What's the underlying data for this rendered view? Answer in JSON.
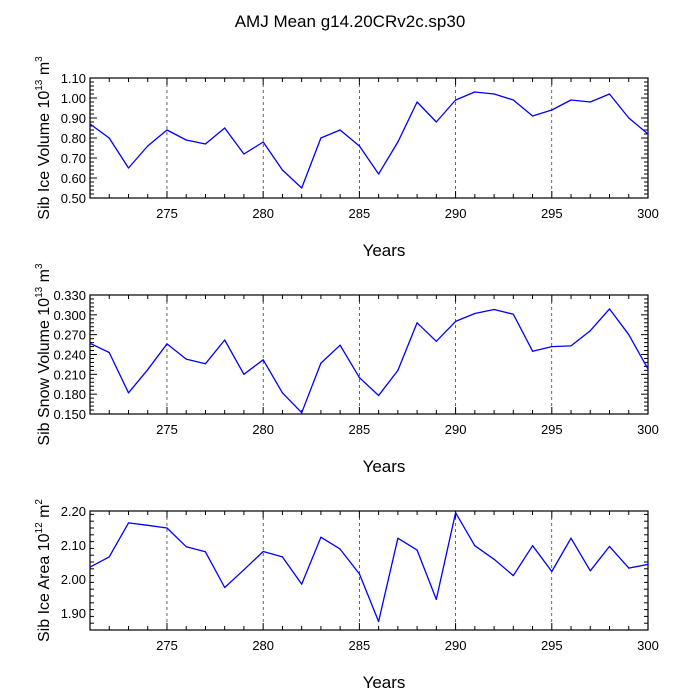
{
  "title": "AMJ Mean g14.20CRv2c.sp30",
  "line_color": "#0000ff",
  "chart_data": [
    {
      "type": "line",
      "ylabel_main": "Sib Ice Volume 10",
      "ylabel_exp": "13",
      "ylabel_unit": " m",
      "ylabel_unit_exp": "3",
      "xlabel": "Years",
      "xlim": [
        271,
        300
      ],
      "ylim": [
        0.5,
        1.1
      ],
      "yticks": [
        0.5,
        0.6,
        0.7,
        0.8,
        0.9,
        1.0,
        1.1
      ],
      "ytick_labels": [
        "0.50",
        "0.60",
        "0.70",
        "0.80",
        "0.90",
        "1.00",
        "1.10"
      ],
      "xticks": [
        275,
        280,
        285,
        290,
        295,
        300
      ],
      "xtick_labels": [
        "275",
        "280",
        "285",
        "290",
        "295",
        "300"
      ],
      "grid": "vertical dashed at major x ticks",
      "x": [
        271,
        272,
        273,
        274,
        275,
        276,
        277,
        278,
        279,
        280,
        281,
        282,
        283,
        284,
        285,
        286,
        287,
        288,
        289,
        290,
        291,
        292,
        293,
        294,
        295,
        296,
        297,
        298,
        299,
        300
      ],
      "values": [
        0.87,
        0.8,
        0.65,
        0.76,
        0.84,
        0.79,
        0.77,
        0.85,
        0.72,
        0.78,
        0.64,
        0.55,
        0.8,
        0.84,
        0.76,
        0.62,
        0.78,
        0.98,
        0.88,
        0.99,
        1.03,
        1.02,
        0.99,
        0.91,
        0.94,
        0.99,
        0.98,
        1.02,
        0.9,
        0.82
      ]
    },
    {
      "type": "line",
      "ylabel_main": "Sib Snow Volume 10",
      "ylabel_exp": "13",
      "ylabel_unit": " m",
      "ylabel_unit_exp": "3",
      "xlabel": "Years",
      "xlim": [
        271,
        300
      ],
      "ylim": [
        0.15,
        0.33
      ],
      "yticks": [
        0.15,
        0.18,
        0.21,
        0.24,
        0.27,
        0.3,
        0.33
      ],
      "ytick_labels": [
        "0.150",
        "0.180",
        "0.210",
        "0.240",
        "0.270",
        "0.300",
        "0.330"
      ],
      "xticks": [
        275,
        280,
        285,
        290,
        295,
        300
      ],
      "xtick_labels": [
        "275",
        "280",
        "285",
        "290",
        "295",
        "300"
      ],
      "grid": "vertical dashed at major x ticks",
      "x": [
        271,
        272,
        273,
        274,
        275,
        276,
        277,
        278,
        279,
        280,
        281,
        282,
        283,
        284,
        285,
        286,
        287,
        288,
        289,
        290,
        291,
        292,
        293,
        294,
        295,
        296,
        297,
        298,
        299,
        300
      ],
      "values": [
        0.257,
        0.243,
        0.182,
        0.217,
        0.256,
        0.233,
        0.226,
        0.262,
        0.21,
        0.232,
        0.182,
        0.152,
        0.227,
        0.254,
        0.205,
        0.178,
        0.216,
        0.288,
        0.26,
        0.29,
        0.302,
        0.308,
        0.301,
        0.245,
        0.252,
        0.253,
        0.276,
        0.309,
        0.27,
        0.218
      ]
    },
    {
      "type": "line",
      "ylabel_main": "Sib Ice Area 10",
      "ylabel_exp": "12",
      "ylabel_unit": " m",
      "ylabel_unit_exp": "2",
      "xlabel": "Years",
      "xlim": [
        271,
        300
      ],
      "ylim": [
        1.85,
        2.2
      ],
      "yticks": [
        1.9,
        2.0,
        2.1,
        2.2
      ],
      "ytick_labels": [
        "1.90",
        "2.00",
        "2.10",
        "2.20"
      ],
      "xticks": [
        275,
        280,
        285,
        290,
        295,
        300
      ],
      "xtick_labels": [
        "275",
        "280",
        "285",
        "290",
        "295",
        "300"
      ],
      "grid": "vertical dashed at major x ticks",
      "x": [
        271,
        272,
        273,
        274,
        275,
        276,
        277,
        278,
        279,
        280,
        281,
        282,
        283,
        284,
        285,
        286,
        287,
        288,
        289,
        290,
        291,
        292,
        293,
        294,
        295,
        296,
        297,
        298,
        299,
        300
      ],
      "values": [
        2.035,
        2.065,
        2.165,
        2.158,
        2.15,
        2.095,
        2.08,
        1.975,
        2.027,
        2.081,
        2.065,
        1.985,
        2.123,
        2.088,
        2.015,
        1.875,
        2.12,
        2.085,
        1.94,
        2.195,
        2.098,
        2.058,
        2.01,
        2.098,
        2.022,
        2.12,
        2.024,
        2.096,
        2.032,
        2.043
      ]
    }
  ]
}
